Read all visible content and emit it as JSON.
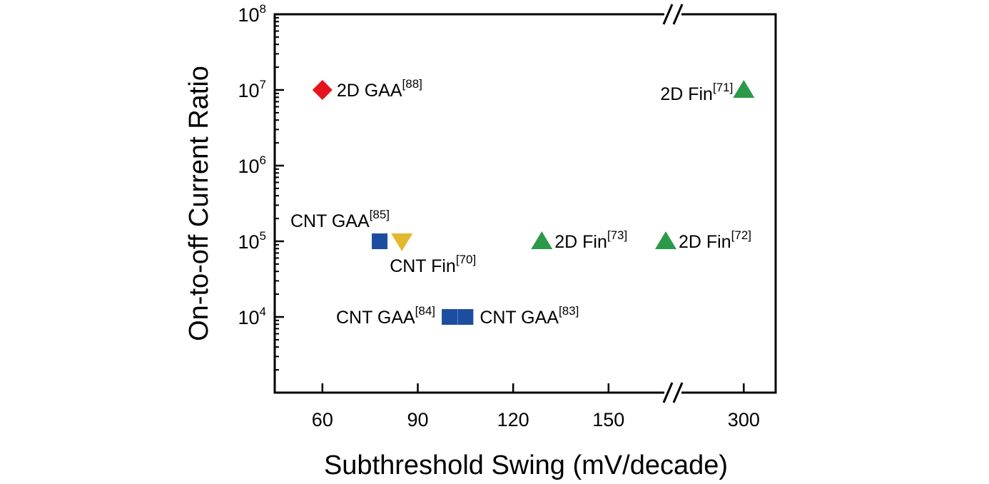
{
  "chart_data": {
    "type": "scatter",
    "title": "",
    "xlabel": "Subthreshold Swing (mV/decade)",
    "ylabel": "On-to-off Current Ratio",
    "x_scale": "linear with axis break between 165 and 300",
    "y_scale": "log",
    "xlim": [
      45,
      310
    ],
    "ylim": [
      1000,
      100000000
    ],
    "x_ticks": [
      "60",
      "90",
      "120",
      "150",
      "300"
    ],
    "y_ticks": [
      {
        "base": "10",
        "exp": "8"
      },
      {
        "base": "10",
        "exp": "7"
      },
      {
        "base": "10",
        "exp": "6"
      },
      {
        "base": "10",
        "exp": "5"
      },
      {
        "base": "10",
        "exp": "4"
      }
    ],
    "grid": false,
    "legend": "none",
    "colors": {
      "2D GAA": "#e5141c",
      "CNT GAA": "#1c4ea0",
      "CNT Fin": "#e2b92e",
      "2D Fin": "#2b9a48"
    },
    "points": [
      {
        "label": "2D GAA",
        "ref": "[88]",
        "x": 60,
        "y": 10000000,
        "marker": "diamond",
        "color": "#e5141c"
      },
      {
        "label": "CNT GAA",
        "ref": "[85]",
        "x": 78,
        "y": 100000,
        "marker": "square",
        "color": "#1c4ea0"
      },
      {
        "label": "CNT Fin",
        "ref": "[70]",
        "x": 85,
        "y": 100000,
        "marker": "triangle-down",
        "color": "#e2b92e"
      },
      {
        "label": "CNT GAA",
        "ref": "[84]",
        "x": 100,
        "y": 10000,
        "marker": "square",
        "color": "#1c4ea0"
      },
      {
        "label": "CNT GAA",
        "ref": "[83]",
        "x": 105,
        "y": 10000,
        "marker": "square",
        "color": "#1c4ea0"
      },
      {
        "label": "2D Fin",
        "ref": "[73]",
        "x": 129,
        "y": 100000,
        "marker": "triangle-up",
        "color": "#2b9a48"
      },
      {
        "label": "2D Fin",
        "ref": "[72]",
        "x": 168,
        "y": 100000,
        "marker": "triangle-up",
        "color": "#2b9a48"
      },
      {
        "label": "2D Fin",
        "ref": "[71]",
        "x": 300,
        "y": 10000000,
        "marker": "triangle-up",
        "color": "#2b9a48"
      }
    ]
  }
}
